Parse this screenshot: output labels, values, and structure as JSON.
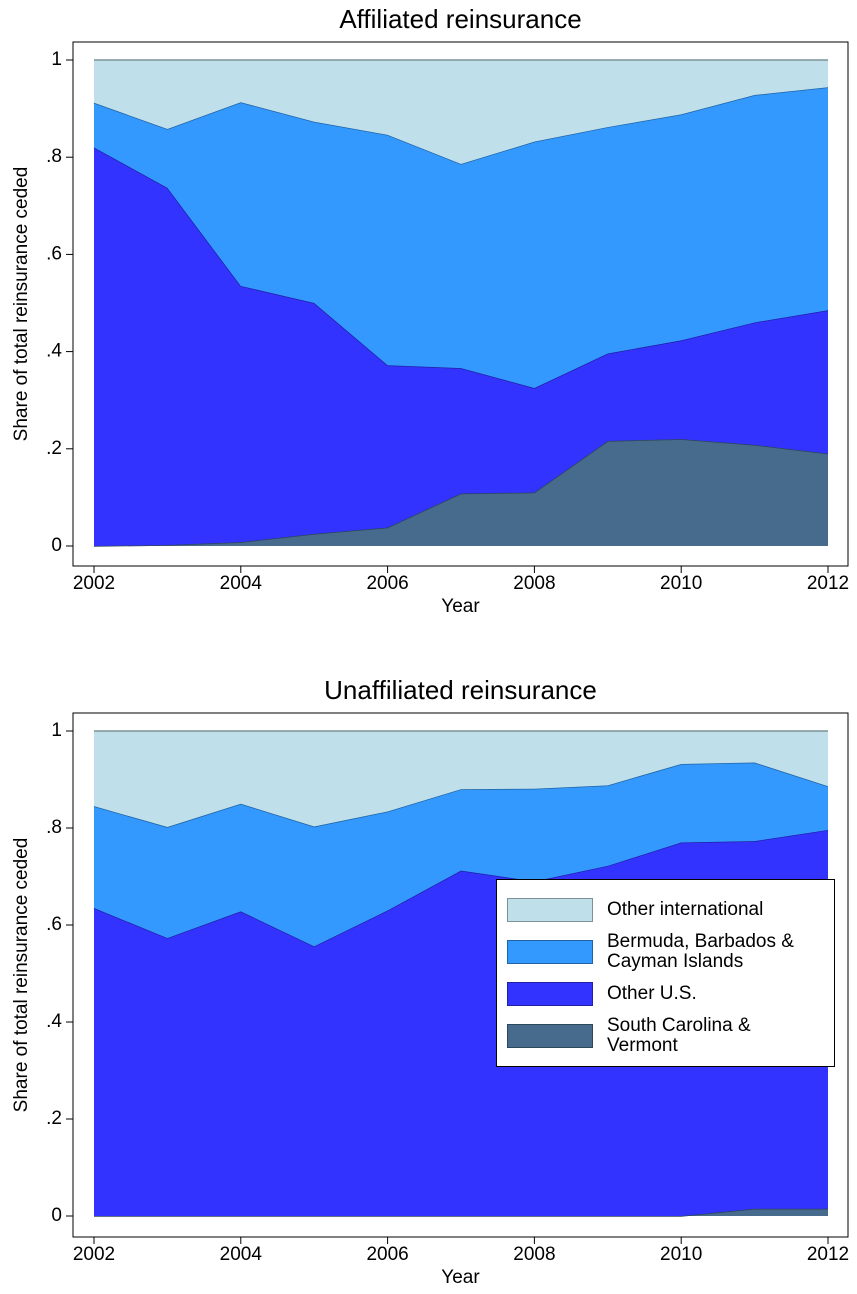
{
  "chart_data": [
    {
      "type": "stacked_area",
      "title": "Affiliated reinsurance",
      "xlabel": "Year",
      "ylabel": "Share of total reinsurance ceded",
      "x": [
        2002,
        2003,
        2004,
        2005,
        2006,
        2007,
        2008,
        2009,
        2010,
        2011,
        2012
      ],
      "series": [
        {
          "name": "South Carolina & Vermont",
          "color": "#476b8c",
          "values": [
            0,
            0.002,
            0.008,
            0.025,
            0.038,
            0.108,
            0.11,
            0.216,
            0.22,
            0.208,
            0.19
          ]
        },
        {
          "name": "Other U.S.",
          "color": "#3333ff",
          "values": [
            0.82,
            0.735,
            0.527,
            0.475,
            0.334,
            0.258,
            0.215,
            0.18,
            0.203,
            0.252,
            0.295
          ]
        },
        {
          "name": "Bermuda, Barbados & Cayman Islands",
          "color": "#3399ff",
          "values": [
            0.092,
            0.121,
            0.378,
            0.373,
            0.474,
            0.42,
            0.507,
            0.466,
            0.465,
            0.468,
            0.459
          ]
        },
        {
          "name": "Other international",
          "color": "#bfe0ea",
          "values": [
            0.088,
            0.142,
            0.087,
            0.127,
            0.154,
            0.214,
            0.168,
            0.138,
            0.112,
            0.072,
            0.056
          ]
        }
      ],
      "xlim": [
        2002,
        2012
      ],
      "xticks": [
        2002,
        2004,
        2006,
        2008,
        2010,
        2012
      ],
      "ylim": [
        0,
        1
      ],
      "yticks": [
        0,
        {
          "value": 0.2,
          "label": ".2"
        },
        {
          "value": 0.4,
          "label": ".4"
        },
        {
          "value": 0.6,
          "label": ".6"
        },
        {
          "value": 0.8,
          "label": ".8"
        },
        1
      ],
      "legend": false
    },
    {
      "type": "stacked_area",
      "title": "Unaffiliated reinsurance",
      "xlabel": "Year",
      "ylabel": "Share of total reinsurance ceded",
      "x": [
        2002,
        2003,
        2004,
        2005,
        2006,
        2007,
        2008,
        2009,
        2010,
        2011,
        2012
      ],
      "series": [
        {
          "name": "South Carolina & Vermont",
          "color": "#476b8c",
          "values": [
            0,
            0,
            0,
            0,
            0,
            0,
            0,
            0,
            0,
            0.015,
            0.015
          ]
        },
        {
          "name": "Other U.S.",
          "color": "#3333ff",
          "values": [
            0.635,
            0.573,
            0.628,
            0.556,
            0.63,
            0.712,
            0.69,
            0.722,
            0.77,
            0.758,
            0.781
          ]
        },
        {
          "name": "Bermuda, Barbados & Cayman Islands",
          "color": "#3399ff",
          "values": [
            0.21,
            0.229,
            0.222,
            0.247,
            0.204,
            0.168,
            0.191,
            0.166,
            0.162,
            0.162,
            0.09
          ]
        },
        {
          "name": "Other international",
          "color": "#bfe0ea",
          "values": [
            0.155,
            0.198,
            0.15,
            0.197,
            0.166,
            0.12,
            0.119,
            0.112,
            0.068,
            0.065,
            0.114
          ]
        }
      ],
      "xlim": [
        2002,
        2012
      ],
      "xticks": [
        2002,
        2004,
        2006,
        2008,
        2010,
        2012
      ],
      "ylim": [
        0,
        1
      ],
      "yticks": [
        0,
        {
          "value": 0.2,
          "label": ".2"
        },
        {
          "value": 0.4,
          "label": ".4"
        },
        {
          "value": 0.6,
          "label": ".6"
        },
        {
          "value": 0.8,
          "label": ".8"
        },
        1
      ],
      "legend": "right"
    }
  ]
}
